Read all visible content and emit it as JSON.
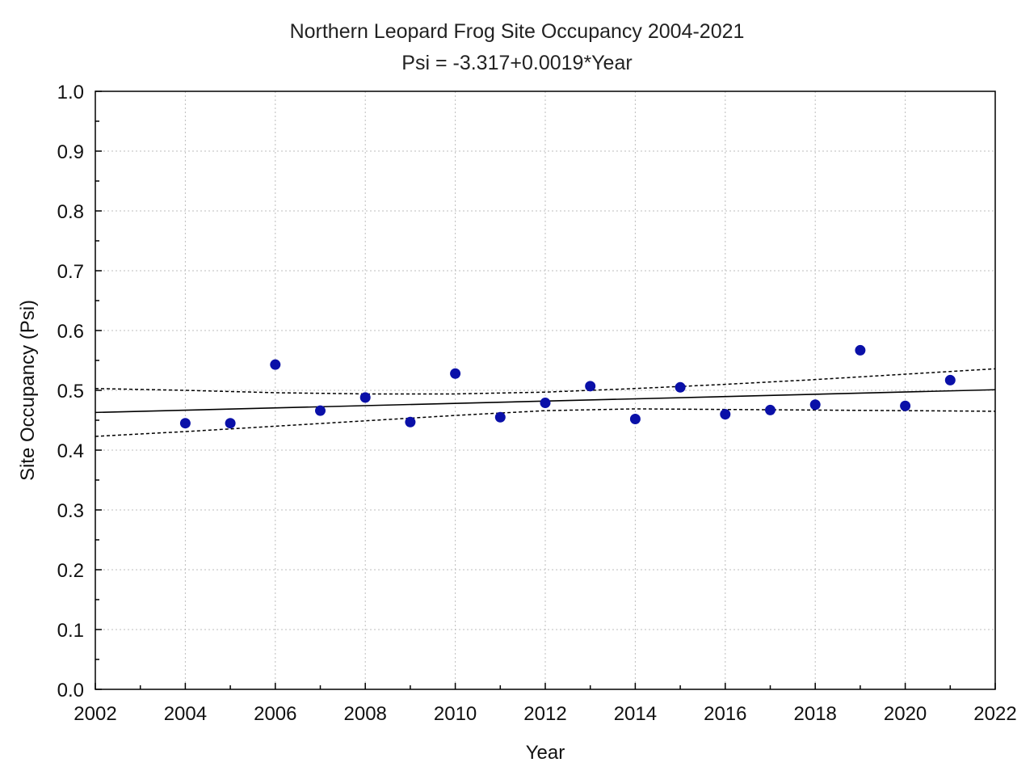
{
  "chart_data": {
    "type": "scatter",
    "title": "Northern Leopard Frog Site Occupancy 2004-2021",
    "subtitle": "Psi = -3.317+0.0019*Year",
    "xlabel": "Year",
    "ylabel": "Site Occupancy (Psi)",
    "xlim": [
      2002,
      2022
    ],
    "ylim": [
      0.0,
      1.0
    ],
    "x_ticks": [
      "2002",
      "2004",
      "2006",
      "2008",
      "2010",
      "2012",
      "2014",
      "2016",
      "2018",
      "2020",
      "2022"
    ],
    "y_ticks": [
      "0.0",
      "0.1",
      "0.2",
      "0.3",
      "0.4",
      "0.5",
      "0.6",
      "0.7",
      "0.8",
      "0.9",
      "1.0"
    ],
    "grid": true,
    "point_color": "#0a10a8",
    "points": [
      {
        "x": 2004,
        "y": 0.445
      },
      {
        "x": 2005,
        "y": 0.445
      },
      {
        "x": 2006,
        "y": 0.543
      },
      {
        "x": 2007,
        "y": 0.466
      },
      {
        "x": 2008,
        "y": 0.488
      },
      {
        "x": 2009,
        "y": 0.447
      },
      {
        "x": 2010,
        "y": 0.528
      },
      {
        "x": 2011,
        "y": 0.455
      },
      {
        "x": 2012,
        "y": 0.479
      },
      {
        "x": 2013,
        "y": 0.507
      },
      {
        "x": 2014,
        "y": 0.452
      },
      {
        "x": 2015,
        "y": 0.505
      },
      {
        "x": 2016,
        "y": 0.46
      },
      {
        "x": 2017,
        "y": 0.467
      },
      {
        "x": 2018,
        "y": 0.476
      },
      {
        "x": 2019,
        "y": 0.567
      },
      {
        "x": 2020,
        "y": 0.474
      },
      {
        "x": 2021,
        "y": 0.517
      }
    ],
    "fit_line": {
      "x": [
        2002,
        2022
      ],
      "y": [
        0.463,
        0.501
      ]
    },
    "ci_upper": {
      "x": [
        2002,
        2004,
        2006,
        2008,
        2010,
        2012,
        2014,
        2016,
        2018,
        2020,
        2022
      ],
      "y": [
        0.503,
        0.5,
        0.496,
        0.494,
        0.494,
        0.497,
        0.503,
        0.51,
        0.518,
        0.527,
        0.536
      ]
    },
    "ci_lower": {
      "x": [
        2002,
        2004,
        2006,
        2008,
        2010,
        2012,
        2014,
        2016,
        2018,
        2020,
        2022
      ],
      "y": [
        0.423,
        0.431,
        0.44,
        0.449,
        0.458,
        0.466,
        0.469,
        0.468,
        0.467,
        0.466,
        0.465
      ]
    }
  }
}
